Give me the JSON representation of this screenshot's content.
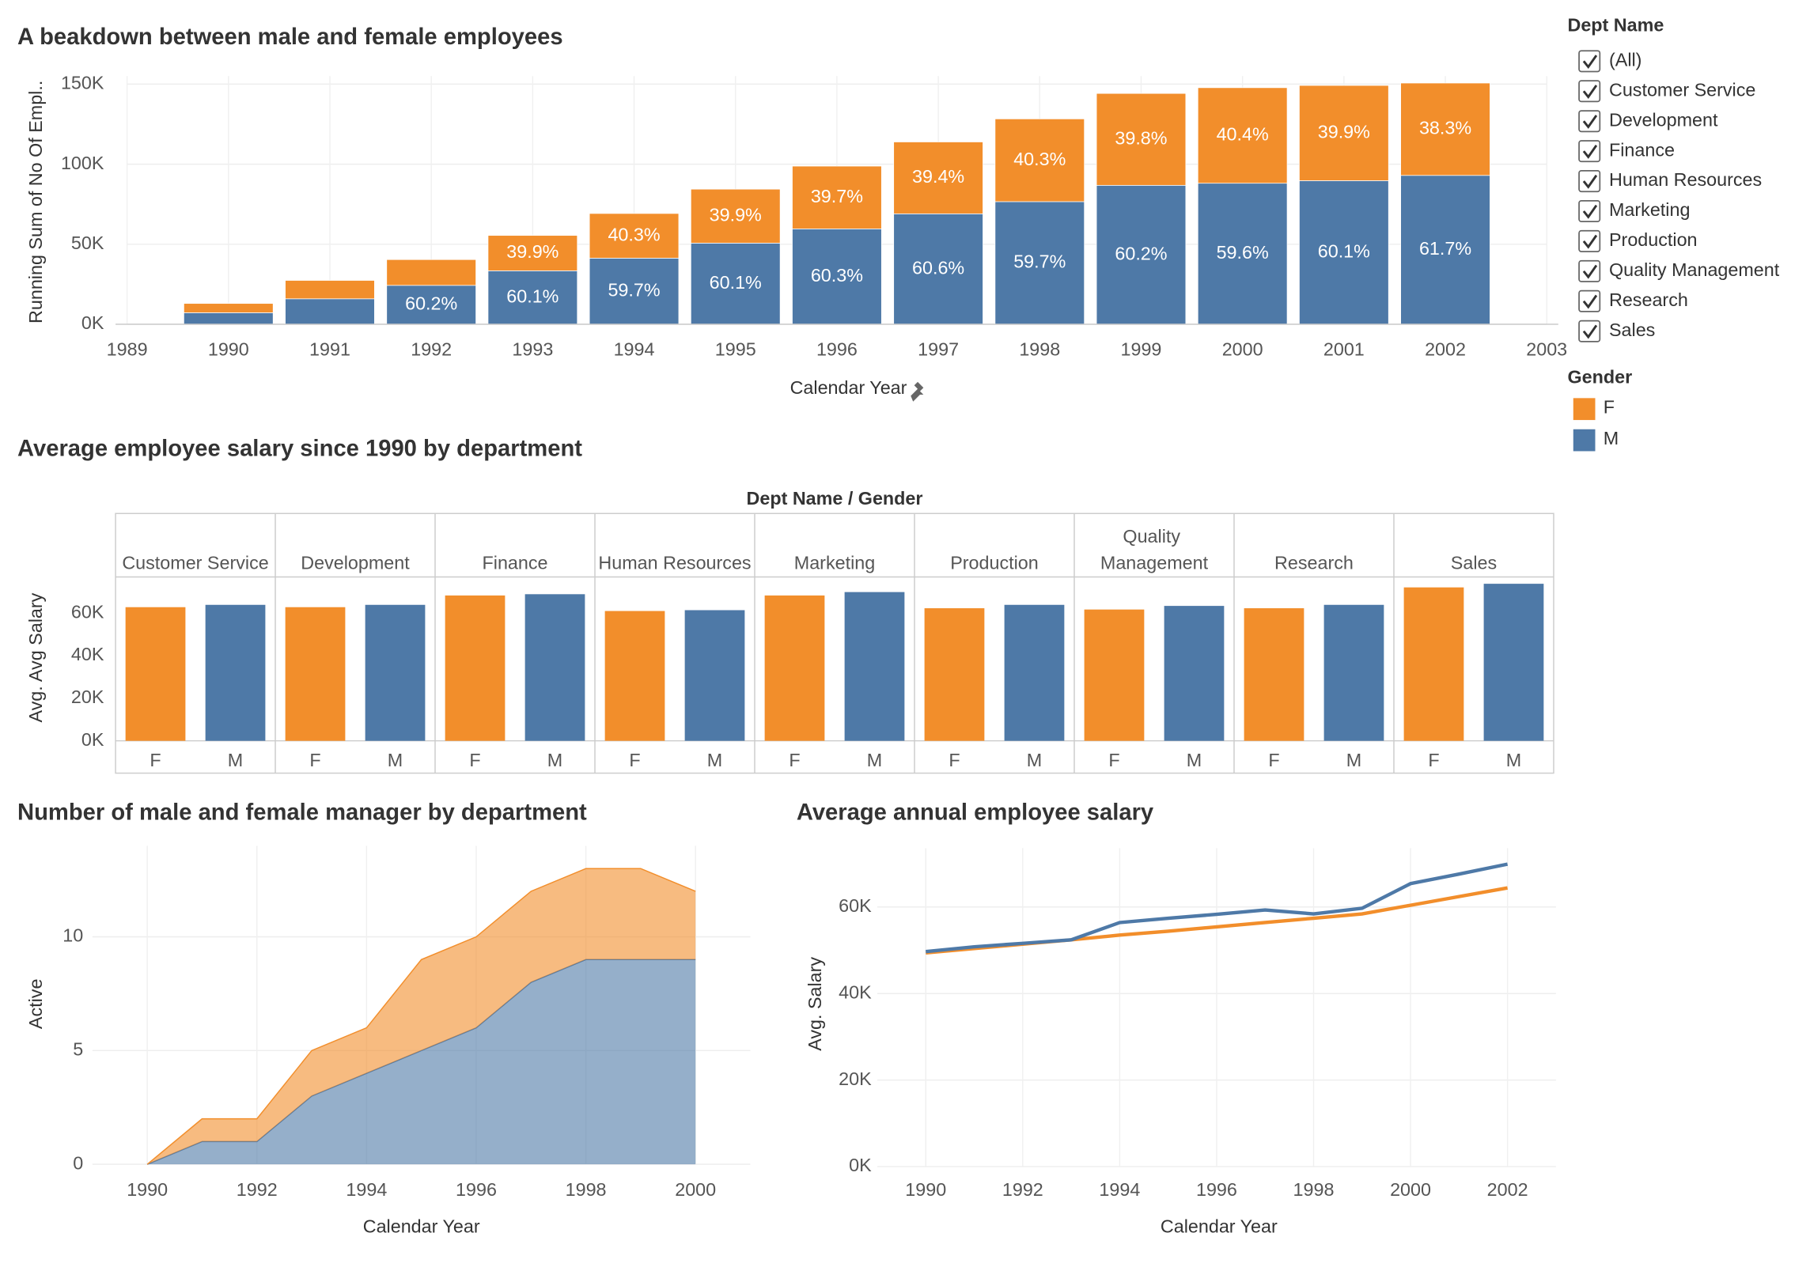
{
  "chart_data": [
    {
      "type": "bar",
      "stacked": true,
      "title": "A beakdown between male and female employees",
      "x_label": "Calendar Year",
      "y_label": "Running Sum of No Of Empl..",
      "x": [
        1990,
        1991,
        1992,
        1993,
        1994,
        1995,
        1996,
        1997,
        1998,
        1999,
        2000,
        2001,
        2002
      ],
      "xlim": [
        1989,
        2003
      ],
      "xticks": [
        1989,
        1990,
        1991,
        1992,
        1993,
        1994,
        1995,
        1996,
        1997,
        1998,
        1999,
        2000,
        2001,
        2002,
        2003
      ],
      "ylim": [
        0,
        155000
      ],
      "yticks": [
        {
          "value": 0,
          "label": "0K"
        },
        {
          "value": 50000,
          "label": "50K"
        },
        {
          "value": 100000,
          "label": "100K"
        },
        {
          "value": 150000,
          "label": "150K"
        }
      ],
      "grid": true,
      "legend_title": "Gender",
      "series": [
        {
          "name": "F",
          "color": "#f28e2b",
          "values": [
            5800,
            11500,
            16100,
            22100,
            27900,
            33700,
            39200,
            44900,
            51700,
            57400,
            59700,
            59500,
            57700
          ],
          "percent_labels": [
            null,
            null,
            null,
            "39.9%",
            "40.3%",
            "39.9%",
            "39.7%",
            "39.4%",
            "40.3%",
            "39.8%",
            "40.4%",
            "39.9%",
            "38.3%"
          ]
        },
        {
          "name": "M",
          "color": "#4e79a7",
          "values": [
            7200,
            15900,
            24300,
            33400,
            41300,
            50700,
            59600,
            69000,
            76600,
            86800,
            88100,
            89700,
            93000
          ],
          "percent_labels": [
            null,
            null,
            "60.2%",
            "60.1%",
            "59.7%",
            "60.1%",
            "60.3%",
            "60.6%",
            "59.7%",
            "60.2%",
            "59.6%",
            "60.1%",
            "61.7%"
          ]
        }
      ]
    },
    {
      "type": "grouped_bar",
      "title": "Average employee salary since 1990 by department",
      "column_header": "Dept Name  /  Gender",
      "y_label": "Avg. Avg Salary",
      "categories": [
        "Customer Service",
        "Development",
        "Finance",
        "Human Resources",
        "Marketing",
        "Production",
        "Quality Management",
        "Research",
        "Sales"
      ],
      "ylim": [
        0,
        77000
      ],
      "yticks": [
        {
          "value": 0,
          "label": "0K"
        },
        {
          "value": 20000,
          "label": "20K"
        },
        {
          "value": 40000,
          "label": "40K"
        },
        {
          "value": 60000,
          "label": "60K"
        }
      ],
      "grid": false,
      "series": [
        {
          "name": "F",
          "color": "#f28e2b",
          "values": [
            62800,
            62800,
            68300,
            61000,
            68300,
            62300,
            61700,
            62300,
            72100
          ]
        },
        {
          "name": "M",
          "color": "#4e79a7",
          "values": [
            63900,
            63900,
            68900,
            61400,
            69900,
            63900,
            63400,
            63900,
            73800
          ]
        }
      ]
    },
    {
      "type": "area",
      "stacked": true,
      "title": "Number of male and female manager by department",
      "x_label": "Calendar Year",
      "y_label": "Active",
      "x": [
        1990,
        1991,
        1992,
        1993,
        1994,
        1995,
        1996,
        1997,
        1998,
        1999,
        2000
      ],
      "xlim": [
        1989,
        2001
      ],
      "xticks": [
        1990,
        1992,
        1994,
        1996,
        1998,
        2000
      ],
      "ylim": [
        0,
        14
      ],
      "yticks": [
        0,
        5,
        10
      ],
      "grid": true,
      "series": [
        {
          "name": "F",
          "color": "#f28e2b",
          "values": [
            0,
            1,
            1,
            2,
            2,
            4,
            4,
            4,
            4,
            4,
            3
          ]
        },
        {
          "name": "M",
          "color": "#4e79a7",
          "values": [
            0,
            1,
            1,
            3,
            4,
            5,
            6,
            8,
            9,
            9,
            9
          ]
        }
      ]
    },
    {
      "type": "line",
      "title": "Average annual employee salary",
      "x_label": "Calendar Year",
      "y_label": "Avg. Salary",
      "x": [
        1990,
        1991,
        1992,
        1993,
        1994,
        1995,
        1996,
        1997,
        1998,
        1999,
        2000,
        2001,
        2002
      ],
      "xlim": [
        1989,
        2003
      ],
      "xticks": [
        1990,
        1992,
        1994,
        1996,
        1998,
        2000,
        2002
      ],
      "ylim": [
        0,
        73600
      ],
      "yticks": [
        {
          "value": 0,
          "label": "0K"
        },
        {
          "value": 20000,
          "label": "20K"
        },
        {
          "value": 40000,
          "label": "40K"
        },
        {
          "value": 60000,
          "label": "60K"
        }
      ],
      "grid": true,
      "series": [
        {
          "name": "F",
          "color": "#f28e2b",
          "values": [
            49400,
            50400,
            51400,
            52400,
            53500,
            54400,
            55400,
            56400,
            57400,
            58400,
            60400,
            62400,
            64400
          ]
        },
        {
          "name": "M",
          "color": "#4e79a7",
          "values": [
            49700,
            50800,
            51600,
            52400,
            56400,
            57400,
            58300,
            59300,
            58400,
            59700,
            65400,
            67600,
            69900
          ]
        }
      ]
    }
  ],
  "dept_filter": {
    "title": "Dept Name",
    "options": [
      "(All)",
      "Customer Service",
      "Development",
      "Finance",
      "Human Resources",
      "Marketing",
      "Production",
      "Quality Management",
      "Research",
      "Sales"
    ],
    "checked": [
      true,
      true,
      true,
      true,
      true,
      true,
      true,
      true,
      true,
      true
    ]
  }
}
